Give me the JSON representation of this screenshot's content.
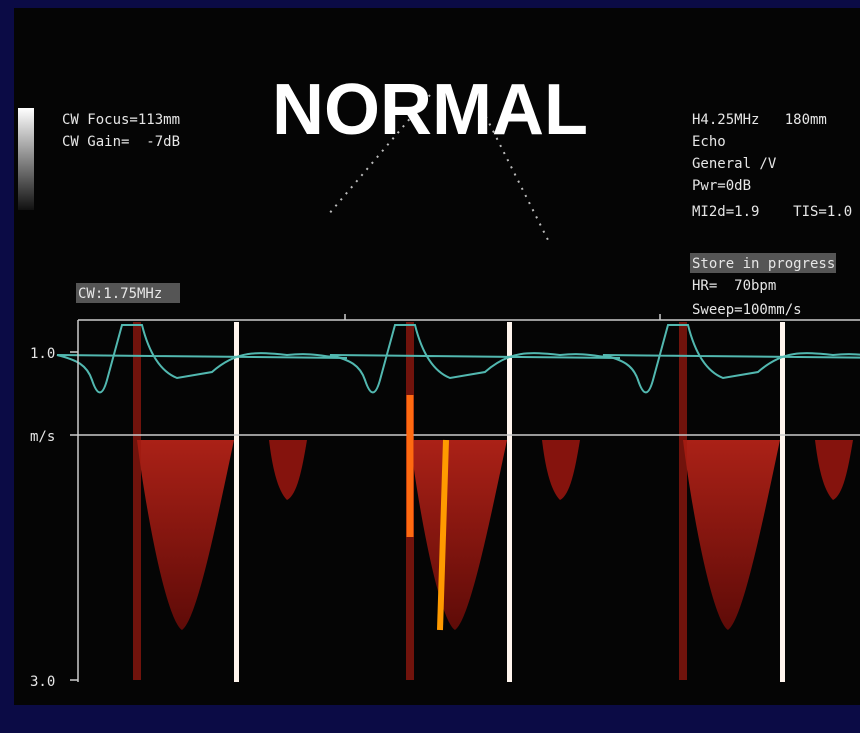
{
  "title": "NORMAL",
  "left_info": [
    "CW Focus=113mm",
    "CW Gain=  -7dB"
  ],
  "right_info": [
    "H4.25MHz   180mm",
    "Echo",
    "General /V",
    "Pwr=0dB",
    "MI2d=1.9    TIS=1.0"
  ],
  "status": [
    "Store in progress",
    "HR=  70bpm",
    "Sweep=100mm/s"
  ],
  "probe": "CW:1.75MHz",
  "scale": {
    "top": "1.0",
    "unit": "m/s",
    "bottom": "3.0"
  }
}
